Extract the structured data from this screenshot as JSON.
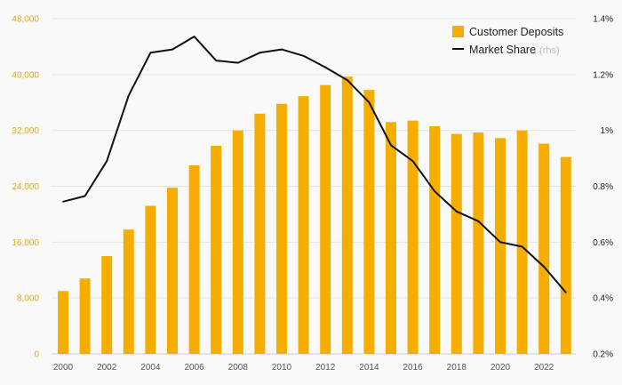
{
  "chart_data": {
    "type": "bar+line",
    "x": [
      2000,
      2001,
      2002,
      2003,
      2004,
      2005,
      2006,
      2007,
      2008,
      2009,
      2010,
      2011,
      2012,
      2013,
      2014,
      2015,
      2016,
      2017,
      2018,
      2019,
      2020,
      2021,
      2022,
      2023
    ],
    "x_tick_labels": [
      "2000",
      "2002",
      "2004",
      "2006",
      "2008",
      "2010",
      "2012",
      "2014",
      "2016",
      "2018",
      "2020",
      "2022"
    ],
    "series": [
      {
        "name": "Customer Deposits",
        "kind": "bar",
        "axis": "left",
        "color": "#f5ad00",
        "values": [
          9000,
          10800,
          14000,
          17800,
          21200,
          23800,
          27000,
          29800,
          32000,
          34400,
          35800,
          36900,
          38500,
          39700,
          37800,
          33200,
          33400,
          32600,
          31500,
          31700,
          30900,
          32000,
          30100,
          28200
        ]
      },
      {
        "name": "Market Share",
        "name_suffix": "(rhs)",
        "kind": "line",
        "axis": "right",
        "color": "#111111",
        "values": [
          0.745,
          0.765,
          0.89,
          1.125,
          1.278,
          1.29,
          1.336,
          1.25,
          1.242,
          1.278,
          1.29,
          1.267,
          1.226,
          1.18,
          1.1,
          0.947,
          0.89,
          0.782,
          0.71,
          0.675,
          0.6,
          0.584,
          0.512,
          0.42
        ]
      }
    ],
    "left_axis": {
      "ylim": [
        0,
        48000
      ],
      "ticks": [
        "0",
        "8,000",
        "16,000",
        "24,000",
        "32,000",
        "40,000",
        "48,000"
      ],
      "tick_values": [
        0,
        8000,
        16000,
        24000,
        32000,
        40000,
        48000
      ],
      "color": "#f0a500"
    },
    "right_axis": {
      "ylim": [
        0.2,
        1.4
      ],
      "ticks": [
        "0.2%",
        "0.4%",
        "0.6%",
        "0.8%",
        "1%",
        "1.2%",
        "1.4%"
      ],
      "tick_values": [
        0.2,
        0.4,
        0.6,
        0.8,
        1.0,
        1.2,
        1.4
      ]
    },
    "grid": true,
    "legend_position": "top-right"
  }
}
